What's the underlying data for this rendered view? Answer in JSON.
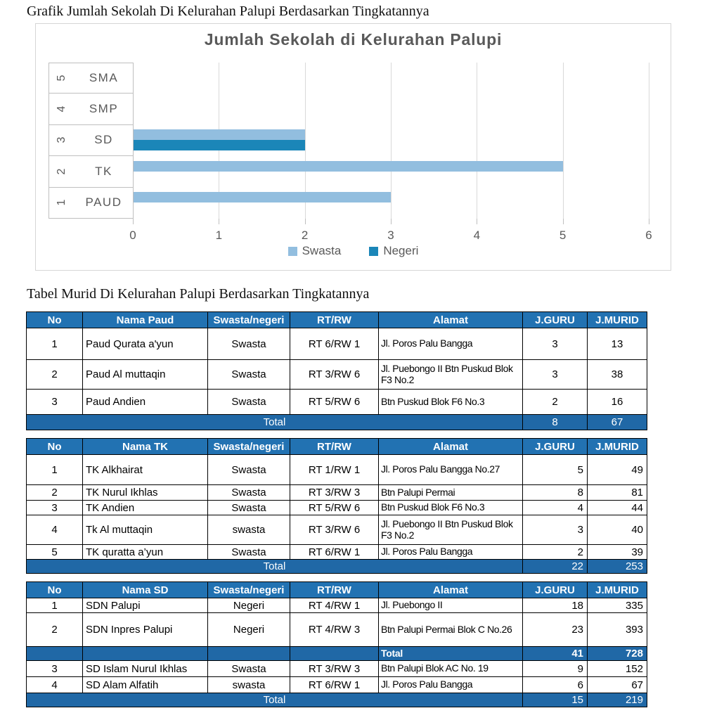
{
  "page": {
    "chart_section_title": "Grafik Jumlah Sekolah Di Kelurahan Palupi Berdasarkan Tingkatannya",
    "table_section_title": "Tabel Murid Di Kelurahan Palupi Berdasarkan Tingkatannya"
  },
  "chart_data": {
    "type": "bar",
    "orientation": "horizontal",
    "title": "Jumlah Sekolah di Kelurahan Palupi",
    "categories": [
      "PAUD",
      "TK",
      "SD",
      "SMP",
      "SMA"
    ],
    "category_numbers": [
      "1",
      "2",
      "3",
      "4",
      "5"
    ],
    "series": [
      {
        "name": "Swasta",
        "color": "#92bedf",
        "values": [
          3,
          5,
          2,
          0,
          0
        ]
      },
      {
        "name": "Negeri",
        "color": "#1b86b8",
        "values": [
          0,
          0,
          2,
          0,
          0
        ]
      }
    ],
    "xlim": [
      0,
      6
    ],
    "x_ticks": [
      "0",
      "1",
      "2",
      "3",
      "4",
      "5",
      "6"
    ],
    "grid": true,
    "legend_position": "bottom",
    "text_color": "#595959"
  },
  "colors": {
    "table_header_bg": "#2272b2",
    "table_total_bg": "#2068a6"
  },
  "tables": [
    {
      "id": "paud",
      "headers": [
        "No",
        "Nama Paud",
        "Swasta/negeri",
        "RT/RW",
        "Alamat",
        "J.GURU",
        "J.MURID"
      ],
      "rows": [
        {
          "type": "data",
          "no": "1",
          "nama": "Paud Qurata a'yun",
          "status": "Swasta",
          "rtrw": "RT 6/RW 1",
          "alamat": "Jl. Poros Palu Bangga",
          "guru": "3",
          "murid": "13"
        },
        {
          "type": "data",
          "no": "2",
          "nama": "Paud Al muttaqin",
          "status": "Swasta",
          "rtrw": "RT 3/RW 6",
          "alamat": "Jl. Puebongo II Btn Puskud Blok F3 No.2",
          "guru": "3",
          "murid": "38"
        },
        {
          "type": "data",
          "no": "3",
          "nama": "Paud Andien",
          "status": "Swasta",
          "rtrw": "RT 5/RW 6",
          "alamat": "Btn Puskud Blok F6 No.3",
          "guru": "2",
          "murid": "16"
        },
        {
          "type": "total",
          "label": "Total",
          "guru": "8",
          "murid": "67"
        }
      ]
    },
    {
      "id": "tk",
      "headers": [
        "No",
        "Nama TK",
        "Swasta/negeri",
        "RT/RW",
        "Alamat",
        "J.GURU",
        "J.MURID"
      ],
      "rows": [
        {
          "type": "data",
          "no": "1",
          "nama": "TK Alkhairat",
          "status": "Swasta",
          "rtrw": "RT 1/RW 1",
          "alamat": "Jl. Poros Palu Bangga No.27",
          "guru": "5",
          "murid": "49"
        },
        {
          "type": "data",
          "no": "2",
          "nama": "TK Nurul Ikhlas",
          "status": "Swasta",
          "rtrw": "RT 3/RW 3",
          "alamat": "Btn Palupi Permai",
          "guru": "8",
          "murid": "81"
        },
        {
          "type": "data",
          "no": "3",
          "nama": "TK Andien",
          "status": "Swasta",
          "rtrw": "RT 5/RW 6",
          "alamat": "Btn Puskud Blok F6 No.3",
          "guru": "4",
          "murid": "44"
        },
        {
          "type": "data",
          "no": "4",
          "nama": "Tk Al muttaqin",
          "status": "swasta",
          "rtrw": "RT 3/RW 6",
          "alamat": "Jl. Puebongo II Btn Puskud Blok F3 No.2",
          "guru": "3",
          "murid": "40"
        },
        {
          "type": "data",
          "no": "5",
          "nama": "TK quratta a’yun",
          "status": "Swasta",
          "rtrw": "RT 6/RW 1",
          "alamat": "Jl. Poros Palu Bangga",
          "guru": "2",
          "murid": "39"
        },
        {
          "type": "total",
          "label": "Total",
          "guru": "22",
          "murid": "253"
        }
      ]
    },
    {
      "id": "sd",
      "headers": [
        "No",
        "Nama SD",
        "Swasta/negeri",
        "RT/RW",
        "Alamat",
        "J.GURU",
        "J.MURID"
      ],
      "rows": [
        {
          "type": "data",
          "no": "1",
          "nama": "SDN Palupi",
          "status": "Negeri",
          "rtrw": "RT 4/RW 1",
          "alamat": "Jl. Puebongo II",
          "guru": "18",
          "murid": "335"
        },
        {
          "type": "data",
          "no": "2",
          "nama": "SDN Inpres Palupi",
          "status": "Negeri",
          "rtrw": "RT 4/RW 3",
          "alamat": "Btn Palupi Permai Blok C No.26",
          "guru": "23",
          "murid": "393"
        },
        {
          "type": "subtotal",
          "label": "Total",
          "guru": "41",
          "murid": "728"
        },
        {
          "type": "data",
          "no": "3",
          "nama": "SD Islam Nurul Ikhlas",
          "status": "Swasta",
          "rtrw": "RT 3/RW 3",
          "alamat": "Btn Palupi Blok AC No. 19",
          "guru": "9",
          "murid": "152"
        },
        {
          "type": "data",
          "no": "4",
          "nama": "SD Alam Alfatih",
          "status": "swasta",
          "rtrw": "RT 6/RW 1",
          "alamat": "Jl. Poros Palu Bangga",
          "guru": "6",
          "murid": "67"
        },
        {
          "type": "total",
          "label": "Total",
          "guru": "15",
          "murid": "219"
        }
      ]
    }
  ]
}
